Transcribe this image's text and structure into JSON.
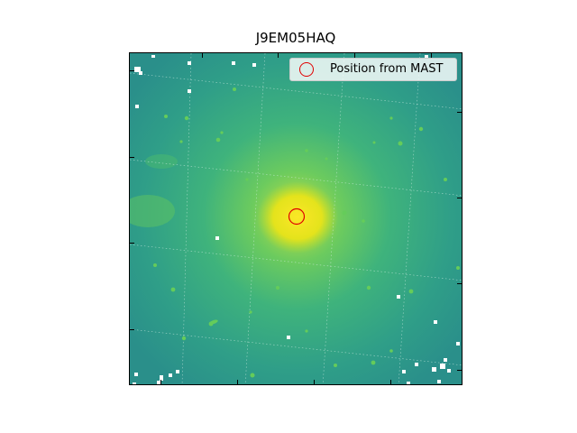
{
  "title": "J9EM05HAQ",
  "legend": {
    "label": "Position from MAST",
    "marker_color": "#e00000"
  },
  "image": {
    "colormap": "viridis",
    "background_color": "#2e9a88",
    "core_color": "#f2e51d",
    "masked_pixel_color": "#ffffff",
    "grid": true
  },
  "marker": {
    "shape": "circle",
    "color": "#e00000"
  }
}
